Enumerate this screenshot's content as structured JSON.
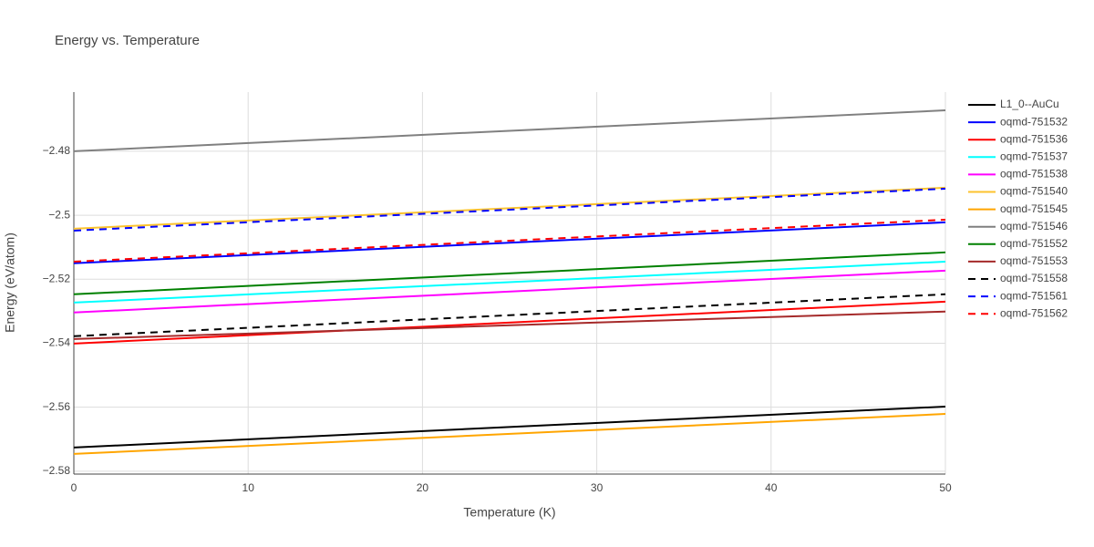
{
  "chart_data": {
    "type": "line",
    "title": "Energy vs. Temperature",
    "x_label": "Temperature (K)",
    "y_label": "Energy (eV/atom)",
    "x": [
      0,
      50
    ],
    "xlim": [
      0,
      50
    ],
    "xticks": [
      0,
      10,
      20,
      30,
      40,
      50
    ],
    "ylim": [
      -2.5809,
      -2.4615
    ],
    "yticks": [
      {
        "value": -2.58,
        "label": "−2.58"
      },
      {
        "value": -2.56,
        "label": "−2.56"
      },
      {
        "value": -2.54,
        "label": "−2.54"
      },
      {
        "value": -2.52,
        "label": "−2.52"
      },
      {
        "value": -2.5,
        "label": "−2.5"
      },
      {
        "value": -2.48,
        "label": "−2.48"
      }
    ],
    "grid": true,
    "legend": "right",
    "series": [
      {
        "name": "L1_0--AuCu",
        "color": "#000000",
        "dash": false,
        "values": [
          -2.5726,
          -2.5598
        ]
      },
      {
        "name": "oqmd-751532",
        "color": "#0000ff",
        "dash": false,
        "values": [
          -2.515,
          -2.5022
        ]
      },
      {
        "name": "oqmd-751536",
        "color": "#ff0000",
        "dash": false,
        "values": [
          -2.5401,
          -2.527
        ]
      },
      {
        "name": "oqmd-751537",
        "color": "#00ffff",
        "dash": false,
        "values": [
          -2.5273,
          -2.5145
        ]
      },
      {
        "name": "oqmd-751538",
        "color": "#ff00ff",
        "dash": false,
        "values": [
          -2.5304,
          -2.5173
        ]
      },
      {
        "name": "oqmd-751540",
        "color": "#fcc32e",
        "dash": false,
        "values": [
          -2.5042,
          -2.4914
        ]
      },
      {
        "name": "oqmd-751545",
        "color": "#ffa500",
        "dash": false,
        "values": [
          -2.5746,
          -2.5621
        ]
      },
      {
        "name": "oqmd-751546",
        "color": "#808080",
        "dash": false,
        "values": [
          -2.48,
          -2.4672
        ]
      },
      {
        "name": "oqmd-751552",
        "color": "#008000",
        "dash": false,
        "values": [
          -2.5247,
          -2.5116
        ]
      },
      {
        "name": "oqmd-751553",
        "color": "#a52a2a",
        "dash": false,
        "values": [
          -2.5387,
          -2.5301
        ]
      },
      {
        "name": "oqmd-751558",
        "color": "#000000",
        "dash": true,
        "values": [
          -2.5378,
          -2.5247
        ]
      },
      {
        "name": "oqmd-751561",
        "color": "#0000ff",
        "dash": true,
        "values": [
          -2.5048,
          -2.4917
        ]
      },
      {
        "name": "oqmd-751562",
        "color": "#ff0000",
        "dash": true,
        "values": [
          -2.5145,
          -2.5014
        ]
      }
    ]
  }
}
